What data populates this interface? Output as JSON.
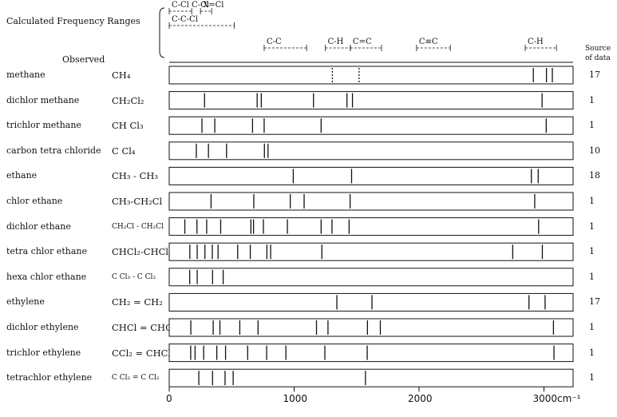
{
  "header": {
    "calc_label": "Calculated Frequency Ranges",
    "observed_label": "Observed",
    "source_label_1": "Source",
    "source_label_2": "of data"
  },
  "ranges": [
    {
      "label": "C-Cl C-Cl",
      "x": [
        0,
        180
      ]
    },
    {
      "label": "X=Cl",
      "x": [
        250,
        340
      ]
    },
    {
      "label": "C-C-Cl",
      "x": [
        0,
        520
      ]
    },
    {
      "label": "C-C",
      "x": [
        760,
        1100
      ]
    },
    {
      "label": "C-H",
      "x": [
        1250,
        1450
      ]
    },
    {
      "label": "C=C",
      "x": [
        1450,
        1700
      ]
    },
    {
      "label": "C≡C",
      "x": [
        1980,
        2250
      ]
    },
    {
      "label": "C-H",
      "x": [
        2850,
        3100
      ]
    }
  ],
  "chart_data": {
    "type": "line-spectrum",
    "title": "",
    "xlabel": "cm⁻¹",
    "ylabel": "",
    "xlim": [
      0,
      3200
    ],
    "x_ticks": [
      "0",
      "1000",
      "2000",
      "3000cm⁻¹"
    ],
    "x_tick_values": [
      0,
      1000,
      2000,
      3000
    ],
    "rows": [
      {
        "name": "methane",
        "formula": "CH₄",
        "source": "17",
        "lines": [
          1306,
          1520,
          2915,
          3020,
          3067
        ],
        "dashed": [
          1306,
          1520
        ]
      },
      {
        "name": "dichlor methane",
        "formula": "CH₂Cl₂",
        "source": "1",
        "lines": [
          283,
          704,
          737,
          1155,
          1423,
          1467,
          2985
        ]
      },
      {
        "name": "trichlor methane",
        "formula": "CH Cl₃",
        "source": "1",
        "lines": [
          262,
          365,
          667,
          760,
          1216,
          3018
        ]
      },
      {
        "name": "carbon tetra chloride",
        "formula": "C Cl₄",
        "source": "10",
        "lines": [
          217,
          314,
          459,
          762,
          791
        ]
      },
      {
        "name": "ethane",
        "formula": "CH₃ - CH₃",
        "source": "18",
        "lines": [
          993,
          1460,
          2899,
          2954
        ]
      },
      {
        "name": "chlor ethane",
        "formula": "CH₃-CH₂Cl",
        "source": "1",
        "lines": [
          335,
          677,
          969,
          1080,
          1448,
          2926
        ]
      },
      {
        "name": "dichlor ethane",
        "formula": "CH₂Cl - CH₂Cl",
        "source": "1",
        "lines": [
          125,
          222,
          300,
          412,
          654,
          675,
          754,
          946,
          1216,
          1303,
          1440,
          2957
        ]
      },
      {
        "name": "tetra chlor ethane",
        "formula": "CHCl₂-CHCl₂",
        "source": "1",
        "lines": [
          165,
          224,
          286,
          345,
          391,
          548,
          649,
          782,
          812,
          1222,
          2750,
          2987
        ]
      },
      {
        "name": "hexa chlor ethane",
        "formula": "C Cl₃ - C Cl₃",
        "source": "1",
        "lines": [
          164,
          224,
          347,
          432
        ]
      },
      {
        "name": "ethylene",
        "formula": "CH₂ = CH₂",
        "source": "17",
        "lines": [
          1342,
          1623,
          2880,
          3009
        ]
      },
      {
        "name": "dichlor ethylene",
        "formula": "CHCl = CHCl",
        "source": "1",
        "lines": [
          173,
          352,
          406,
          565,
          711,
          1179,
          1271,
          1587,
          1690,
          3076
        ]
      },
      {
        "name": "trichlor ethylene",
        "formula": "CCl₂ = CHCl",
        "source": "1",
        "lines": [
          172,
          207,
          276,
          381,
          451,
          628,
          780,
          934,
          1246,
          1585,
          3080
        ]
      },
      {
        "name": "tetrachlor ethylene",
        "formula": "C Cl₂ = C Cl₂",
        "source": "1",
        "lines": [
          237,
          347,
          447,
          512,
          1571
        ]
      }
    ]
  }
}
